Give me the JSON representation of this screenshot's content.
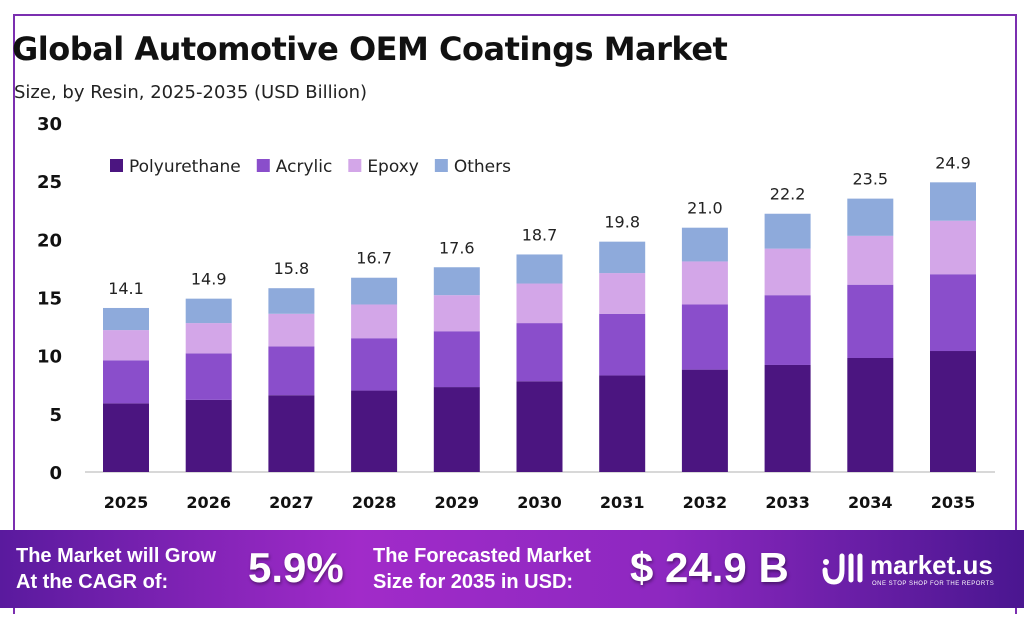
{
  "chart_data": {
    "type": "bar",
    "stacked": true,
    "title": "Global Automotive OEM Coatings Market",
    "subtitle": "Size, by Resin, 2025-2035 (USD Billion)",
    "xlabel": "",
    "ylabel": "",
    "ylim": [
      0,
      30
    ],
    "yticks": [
      0,
      5,
      10,
      15,
      20,
      25,
      30
    ],
    "grid": false,
    "legend_position": "top-left",
    "categories": [
      "2025",
      "2026",
      "2027",
      "2028",
      "2029",
      "2030",
      "2031",
      "2032",
      "2033",
      "2034",
      "2035"
    ],
    "series": [
      {
        "name": "Polyurethane",
        "color": "#4b1580",
        "values": [
          5.9,
          6.2,
          6.6,
          7.0,
          7.3,
          7.8,
          8.3,
          8.8,
          9.2,
          9.8,
          10.4
        ]
      },
      {
        "name": "Acrylic",
        "color": "#8a4ecb",
        "values": [
          3.7,
          4.0,
          4.2,
          4.5,
          4.8,
          5.0,
          5.3,
          5.6,
          6.0,
          6.3,
          6.6
        ]
      },
      {
        "name": "Epoxy",
        "color": "#d3a6e8",
        "values": [
          2.6,
          2.6,
          2.8,
          2.9,
          3.1,
          3.4,
          3.5,
          3.7,
          4.0,
          4.2,
          4.6
        ]
      },
      {
        "name": "Others",
        "color": "#8eaadb",
        "values": [
          1.9,
          2.1,
          2.2,
          2.3,
          2.4,
          2.5,
          2.7,
          2.9,
          3.0,
          3.2,
          3.3
        ]
      }
    ],
    "totals": [
      "14.1",
      "14.9",
      "15.8",
      "16.7",
      "17.6",
      "18.7",
      "19.8",
      "21.0",
      "22.2",
      "23.5",
      "24.9"
    ]
  },
  "footer": {
    "cagr_label_line1": "The Market will Grow",
    "cagr_label_line2": "At the CAGR of:",
    "cagr_value": "5.9%",
    "forecast_label_line1": "The Forecasted Market",
    "forecast_label_line2": "Size for 2035 in USD:",
    "forecast_value": "$ 24.9 B",
    "logo_text": "market.us",
    "logo_tagline": "ONE STOP SHOP FOR THE REPORTS"
  }
}
